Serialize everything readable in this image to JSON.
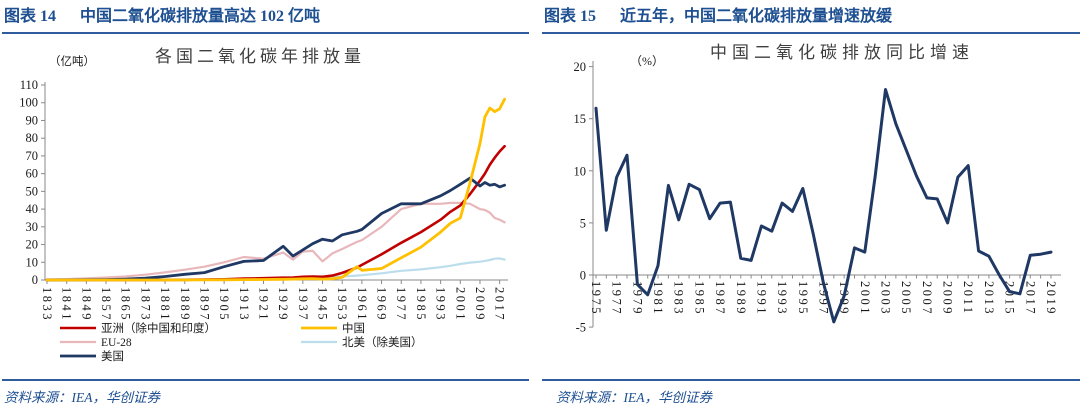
{
  "panels": [
    {
      "tag": "图表 14",
      "title": "中国二氧化碳排放量高达 102 亿吨",
      "source": "资料来源：IEA，华创证券"
    },
    {
      "tag": "图表 15",
      "title": "近五年，中国二氧化碳排放量增速放缓",
      "source": "资料来源：IEA，华创证券"
    }
  ],
  "colors": {
    "header_blue": "#1D4F91",
    "rule_blue": "#2E5C9E",
    "axis_line": "#8a8a8a",
    "tick_text": "#1a1a1a",
    "title_text": "#3f3f3f",
    "asia": "#C00000",
    "china": "#FFC000",
    "eu28": "#E8B7BB",
    "north_america": "#BCDDEB",
    "us": "#1F3864"
  },
  "chart_data": [
    {
      "type": "line",
      "title": "各国二氧化碳年排放量",
      "unit_label": "（亿吨）",
      "ylabel": "亿吨",
      "ylim": [
        0,
        110
      ],
      "ytick_step": 10,
      "legend_position": "bottom",
      "grid": false,
      "x_tick_labels": [
        "1833",
        "1841",
        "1849",
        "1857",
        "1865",
        "1873",
        "1881",
        "1889",
        "1897",
        "1905",
        "1913",
        "1921",
        "1929",
        "1937",
        "1945",
        "1953",
        "1961",
        "1969",
        "1977",
        "1985",
        "1993",
        "2001",
        "2009",
        "2017"
      ],
      "years": [
        1833,
        1841,
        1849,
        1857,
        1865,
        1873,
        1881,
        1889,
        1897,
        1905,
        1913,
        1921,
        1929,
        1933,
        1937,
        1941,
        1945,
        1949,
        1953,
        1959,
        1961,
        1969,
        1977,
        1985,
        1993,
        1997,
        2001,
        2005,
        2009,
        2011,
        2013,
        2015,
        2017,
        2019
      ],
      "series": [
        {
          "name": "EU-28",
          "color_key": "eu28",
          "width": 2.2,
          "values": [
            0.3,
            0.5,
            0.9,
            1.4,
            2.0,
            3.0,
            4.3,
            5.8,
            7.5,
            10.0,
            13.0,
            12.0,
            15.5,
            11.5,
            16.0,
            16.5,
            10.5,
            15.0,
            17.5,
            21.5,
            22.5,
            30.0,
            40.0,
            43.0,
            43.0,
            43.5,
            43.5,
            43.0,
            40.0,
            39.5,
            38.0,
            35.0,
            34.0,
            32.5
          ]
        },
        {
          "name": "北美（除美国）",
          "color_key": "north_america",
          "width": 2.2,
          "values": [
            0,
            0,
            0,
            0,
            0,
            0.02,
            0.05,
            0.1,
            0.2,
            0.35,
            0.6,
            0.7,
            0.9,
            0.8,
            0.9,
            1.1,
            1.4,
            1.6,
            2.0,
            2.5,
            2.7,
            3.8,
            5.2,
            6.0,
            7.2,
            8.0,
            9.0,
            9.8,
            10.3,
            10.8,
            11.3,
            12.0,
            12.2,
            11.5
          ]
        },
        {
          "name": "亚洲（除中国和印度）",
          "color_key": "asia",
          "width": 2.6,
          "values": [
            0,
            0,
            0,
            0,
            0.02,
            0.05,
            0.08,
            0.12,
            0.2,
            0.4,
            0.8,
            1.0,
            1.3,
            1.4,
            1.8,
            2.0,
            1.8,
            2.5,
            4.0,
            7.0,
            8.5,
            14.5,
            21.0,
            27.0,
            34.0,
            38.5,
            42.0,
            48.5,
            56.0,
            60.0,
            65.0,
            69.0,
            72.5,
            75.5
          ]
        },
        {
          "name": "美国",
          "color_key": "us",
          "width": 2.8,
          "values": [
            0,
            0.05,
            0.1,
            0.25,
            0.5,
            1.0,
            2.0,
            3.2,
            4.2,
            7.5,
            10.5,
            11.0,
            19.0,
            13.5,
            17.0,
            20.5,
            23.0,
            22.0,
            25.5,
            27.5,
            28.5,
            37.5,
            43.0,
            43.0,
            47.5,
            50.5,
            54.0,
            57.5,
            53.0,
            55.0,
            53.5,
            54.0,
            52.5,
            53.5
          ]
        },
        {
          "name": "中国",
          "color_key": "china",
          "width": 2.8,
          "values": [
            0,
            0,
            0,
            0,
            0,
            0,
            0,
            0,
            0.05,
            0.1,
            0.2,
            0.3,
            0.4,
            0.5,
            0.7,
            0.8,
            0.5,
            0.7,
            1.5,
            7.5,
            5.5,
            6.5,
            12.5,
            18.5,
            27.0,
            32.0,
            35.0,
            55.0,
            77.0,
            92.0,
            97.0,
            95.0,
            96.5,
            102.0
          ]
        }
      ],
      "legend_columns": [
        [
          "亚洲（除中国和印度）",
          "EU-28",
          "美国"
        ],
        [
          "中国",
          "北美（除美国）"
        ]
      ]
    },
    {
      "type": "line",
      "title": "中国二氧化碳排放同比增速",
      "unit_label": "（%）",
      "ylabel": "%",
      "ylim": [
        -5,
        20
      ],
      "ytick_step": 5,
      "grid": false,
      "x_start": 1975,
      "x_end": 2019,
      "x_tick_labels": [
        "1975",
        "1977",
        "1979",
        "1981",
        "1983",
        "1985",
        "1987",
        "1989",
        "1991",
        "1993",
        "1995",
        "1997",
        "1999",
        "2001",
        "2003",
        "2005",
        "2007",
        "2009",
        "2011",
        "2013",
        "2015",
        "2017",
        "2019"
      ],
      "series": [
        {
          "name": "中国二氧化碳排放同比增速",
          "color_key": "us",
          "width": 3,
          "values": [
            16.0,
            4.3,
            9.4,
            11.5,
            -0.9,
            -1.9,
            0.9,
            8.6,
            5.3,
            8.7,
            8.2,
            5.4,
            6.9,
            7.0,
            1.6,
            1.4,
            4.7,
            4.2,
            6.9,
            6.1,
            8.3,
            4.0,
            -0.8,
            -4.5,
            -2.0,
            2.6,
            2.2,
            9.5,
            17.8,
            14.5,
            12.0,
            9.5,
            7.4,
            7.3,
            5.0,
            9.4,
            10.5,
            2.3,
            1.8,
            0.0,
            -1.6,
            -1.8,
            1.9,
            2.0,
            2.2
          ]
        }
      ]
    }
  ]
}
